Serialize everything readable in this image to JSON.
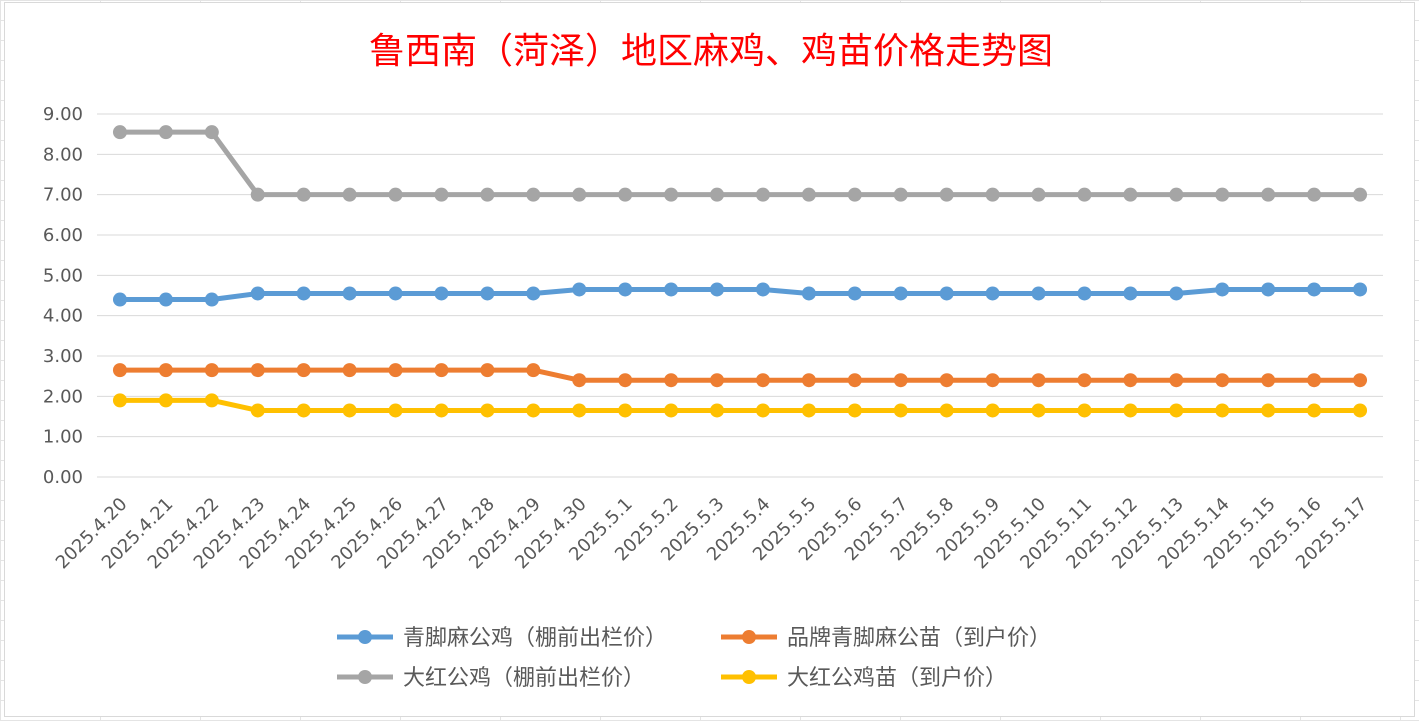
{
  "chart_data": {
    "type": "line",
    "title": "鲁西南（菏泽）地区麻鸡、鸡苗价格走势图",
    "xlabel": "",
    "ylabel": "",
    "ylim": [
      0,
      9
    ],
    "ytick_labels": [
      "0.00",
      "1.00",
      "2.00",
      "3.00",
      "4.00",
      "5.00",
      "6.00",
      "7.00",
      "8.00",
      "9.00"
    ],
    "grid": true,
    "legend_position": "bottom",
    "categories": [
      "2025.4.20",
      "2025.4.21",
      "2025.4.22",
      "2025.4.23",
      "2025.4.24",
      "2025.4.25",
      "2025.4.26",
      "2025.4.27",
      "2025.4.28",
      "2025.4.29",
      "2025.4.30",
      "2025.5.1",
      "2025.5.2",
      "2025.5.3",
      "2025.5.4",
      "2025.5.5",
      "2025.5.6",
      "2025.5.7",
      "2025.5.8",
      "2025.5.9",
      "2025.5.10",
      "2025.5.11",
      "2025.5.12",
      "2025.5.13",
      "2025.5.14",
      "2025.5.15",
      "2025.5.16",
      "2025.5.17"
    ],
    "series": [
      {
        "name": "青脚麻公鸡（棚前出栏价）",
        "color": "#5b9bd5",
        "values": [
          4.4,
          4.4,
          4.4,
          4.55,
          4.55,
          4.55,
          4.55,
          4.55,
          4.55,
          4.55,
          4.65,
          4.65,
          4.65,
          4.65,
          4.65,
          4.55,
          4.55,
          4.55,
          4.55,
          4.55,
          4.55,
          4.55,
          4.55,
          4.55,
          4.65,
          4.65,
          4.65,
          4.65
        ]
      },
      {
        "name": "品牌青脚麻公苗（到户价）",
        "color": "#ed7d31",
        "values": [
          2.65,
          2.65,
          2.65,
          2.65,
          2.65,
          2.65,
          2.65,
          2.65,
          2.65,
          2.65,
          2.4,
          2.4,
          2.4,
          2.4,
          2.4,
          2.4,
          2.4,
          2.4,
          2.4,
          2.4,
          2.4,
          2.4,
          2.4,
          2.4,
          2.4,
          2.4,
          2.4,
          2.4
        ]
      },
      {
        "name": "大红公鸡（棚前出栏价）",
        "color": "#a5a5a5",
        "values": [
          8.55,
          8.55,
          8.55,
          7.0,
          7.0,
          7.0,
          7.0,
          7.0,
          7.0,
          7.0,
          7.0,
          7.0,
          7.0,
          7.0,
          7.0,
          7.0,
          7.0,
          7.0,
          7.0,
          7.0,
          7.0,
          7.0,
          7.0,
          7.0,
          7.0,
          7.0,
          7.0,
          7.0
        ]
      },
      {
        "name": "大红公鸡苗（到户价）",
        "color": "#ffc000",
        "values": [
          1.9,
          1.9,
          1.9,
          1.65,
          1.65,
          1.65,
          1.65,
          1.65,
          1.65,
          1.65,
          1.65,
          1.65,
          1.65,
          1.65,
          1.65,
          1.65,
          1.65,
          1.65,
          1.65,
          1.65,
          1.65,
          1.65,
          1.65,
          1.65,
          1.65,
          1.65,
          1.65,
          1.65
        ]
      }
    ]
  }
}
